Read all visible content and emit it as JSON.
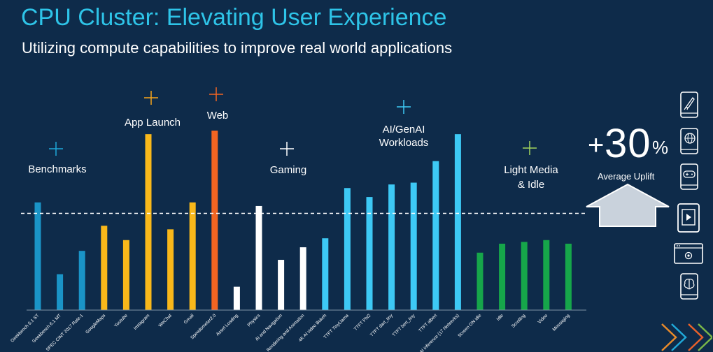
{
  "title": "CPU Cluster: Elevating User Experience",
  "subtitle": "Utilizing compute capabilities to improve real world applications",
  "uplift": {
    "plus": "+",
    "value": "30",
    "percent": "%",
    "label": "Average Uplift"
  },
  "colors": {
    "background": "#0e2b4a",
    "benchmarks": "#1a94c7",
    "app_launch": "#f9b81a",
    "web": "#f26522",
    "gaming": "#ffffff",
    "ai": "#3dc9f5",
    "light_media": "#16a64a",
    "arrow": "#c9d2dc"
  },
  "side_icons": [
    "rocket-phone-icon",
    "globe-phone-icon",
    "gamepad-phone-icon",
    "video-tablet-icon",
    "settings-window-icon",
    "brain-phone-icon"
  ],
  "chart_data": {
    "type": "bar",
    "title": "CPU Cluster: Elevating User Experience",
    "ylabel": "",
    "xlabel": "",
    "ylim": [
      0,
      1
    ],
    "baseline_reference": 0.5,
    "groups": [
      {
        "name": "Benchmarks",
        "color_key": "benchmarks",
        "categories": [
          "Geekbench 6.1 ST",
          "Geekbench 6.1 MT",
          "SPEC CINT 2017 Rate-1"
        ],
        "values": [
          0.6,
          0.2,
          0.33
        ]
      },
      {
        "name": "App Launch",
        "color_key": "app_launch",
        "categories": [
          "GoogleMaps",
          "Youtube",
          "Instagram",
          "WeChat",
          "Gmail"
        ],
        "values": [
          0.47,
          0.39,
          0.98,
          0.45,
          0.6
        ]
      },
      {
        "name": "Web",
        "color_key": "web",
        "categories": [
          "Speedometer2.0"
        ],
        "values": [
          1.0
        ]
      },
      {
        "name": "Gaming",
        "color_key": "gaming",
        "categories": [
          "Asset Loading",
          "Physics",
          "AI and Navigation",
          "Rendering and Animation"
        ],
        "values": [
          0.13,
          0.58,
          0.28,
          0.35
        ]
      },
      {
        "name": "AI/GenAI Workloads",
        "color_key": "ai",
        "categories": [
          "4K AI video Bokeh",
          "TTFT TinyLlama",
          "TTFT Phi2",
          "TTFT dart_tiny",
          "TTFT bert_tiny",
          "TTFT albert",
          "AI inference (17 Networks)"
        ],
        "values": [
          0.4,
          0.68,
          0.63,
          0.7,
          0.71,
          0.83,
          0.98
        ]
      },
      {
        "name": "Light Media & Idle",
        "color_key": "light_media",
        "categories": [
          "Screen ON idle",
          "Idle",
          "Scrolling",
          "Video",
          "Messaging"
        ],
        "values": [
          0.32,
          0.37,
          0.38,
          0.39,
          0.37
        ]
      }
    ]
  }
}
